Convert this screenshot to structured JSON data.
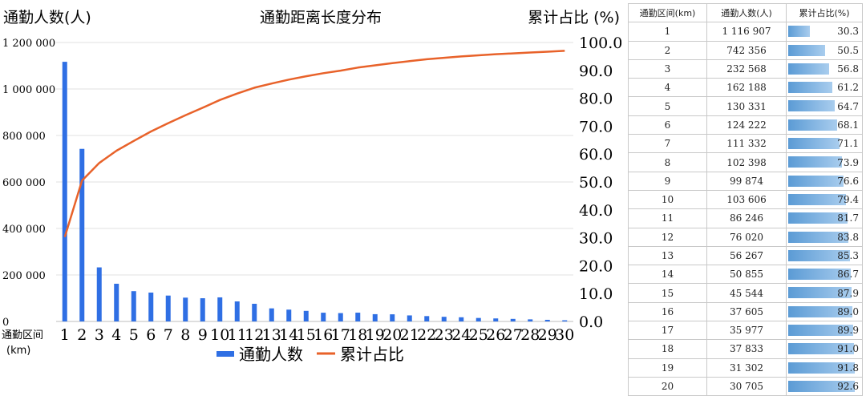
{
  "chart_data": {
    "type": "bar+line",
    "title": "通勤距离长度分布",
    "ylabel_left": "通勤人数(人)",
    "ylabel_right": "累计占比 (%)",
    "xlabel": "通勤区间",
    "xlabel_unit": "(km)",
    "ylim_left": [
      0,
      1200000
    ],
    "ylim_right": [
      0,
      100
    ],
    "left_ticks": [
      "0",
      "200 000",
      "400 000",
      "600 000",
      "800 000",
      "1 000 000",
      "1 200 000"
    ],
    "right_ticks": [
      "0.0",
      "10.0",
      "20.0",
      "30.0",
      "40.0",
      "50.0",
      "60.0",
      "70.0",
      "80.0",
      "90.0",
      "100.0"
    ],
    "categories": [
      "1",
      "2",
      "3",
      "4",
      "5",
      "6",
      "7",
      "8",
      "9",
      "10",
      "11",
      "12",
      "13",
      "14",
      "15",
      "16",
      "17",
      "18",
      "19",
      "20",
      "21",
      "22",
      "23",
      "24",
      "25",
      "26",
      "27",
      "28",
      "29",
      "30"
    ],
    "series": [
      {
        "name": "通勤人数",
        "type": "bar",
        "color": "#2f6fe4",
        "values": [
          1116907,
          742356,
          232568,
          162188,
          130331,
          124222,
          111332,
          102398,
          99874,
          103606,
          86246,
          76020,
          56267,
          50855,
          45544,
          37605,
          35977,
          37833,
          31302,
          30705,
          26000,
          23000,
          20000,
          18000,
          15000,
          13000,
          11000,
          9000,
          7000,
          5000
        ]
      },
      {
        "name": "累计占比",
        "type": "line",
        "color": "#e8622a",
        "values": [
          30.3,
          50.5,
          56.8,
          61.2,
          64.7,
          68.1,
          71.1,
          73.9,
          76.6,
          79.4,
          81.7,
          83.8,
          85.3,
          86.7,
          87.9,
          89.0,
          89.9,
          91.0,
          91.8,
          92.6,
          93.3,
          94.0,
          94.5,
          95.0,
          95.4,
          95.8,
          96.1,
          96.4,
          96.7,
          97.0
        ]
      }
    ],
    "grid": true,
    "legend": "bottom"
  },
  "table": {
    "headers": [
      "通勤区间(km)",
      "通勤人数(人)",
      "累计占比(%)"
    ],
    "rows": [
      {
        "km": "1",
        "count": "1 116 907",
        "cum": "30.3",
        "pct": 30.3
      },
      {
        "km": "2",
        "count": "742 356",
        "cum": "50.5",
        "pct": 50.5
      },
      {
        "km": "3",
        "count": "232 568",
        "cum": "56.8",
        "pct": 56.8
      },
      {
        "km": "4",
        "count": "162 188",
        "cum": "61.2",
        "pct": 61.2
      },
      {
        "km": "5",
        "count": "130 331",
        "cum": "64.7",
        "pct": 64.7
      },
      {
        "km": "6",
        "count": "124 222",
        "cum": "68.1",
        "pct": 68.1
      },
      {
        "km": "7",
        "count": "111 332",
        "cum": "71.1",
        "pct": 71.1
      },
      {
        "km": "8",
        "count": "102 398",
        "cum": "73.9",
        "pct": 73.9
      },
      {
        "km": "9",
        "count": "99 874",
        "cum": "76.6",
        "pct": 76.6
      },
      {
        "km": "10",
        "count": "103 606",
        "cum": "79.4",
        "pct": 79.4
      },
      {
        "km": "11",
        "count": "86 246",
        "cum": "81.7",
        "pct": 81.7
      },
      {
        "km": "12",
        "count": "76 020",
        "cum": "83.8",
        "pct": 83.8
      },
      {
        "km": "13",
        "count": "56 267",
        "cum": "85.3",
        "pct": 85.3
      },
      {
        "km": "14",
        "count": "50 855",
        "cum": "86.7",
        "pct": 86.7
      },
      {
        "km": "15",
        "count": "45 544",
        "cum": "87.9",
        "pct": 87.9
      },
      {
        "km": "16",
        "count": "37 605",
        "cum": "89.0",
        "pct": 89.0
      },
      {
        "km": "17",
        "count": "35 977",
        "cum": "89.9",
        "pct": 89.9
      },
      {
        "km": "18",
        "count": "37 833",
        "cum": "91.0",
        "pct": 91.0
      },
      {
        "km": "19",
        "count": "31 302",
        "cum": "91.8",
        "pct": 91.8
      },
      {
        "km": "20",
        "count": "30 705",
        "cum": "92.6",
        "pct": 92.6
      }
    ]
  }
}
